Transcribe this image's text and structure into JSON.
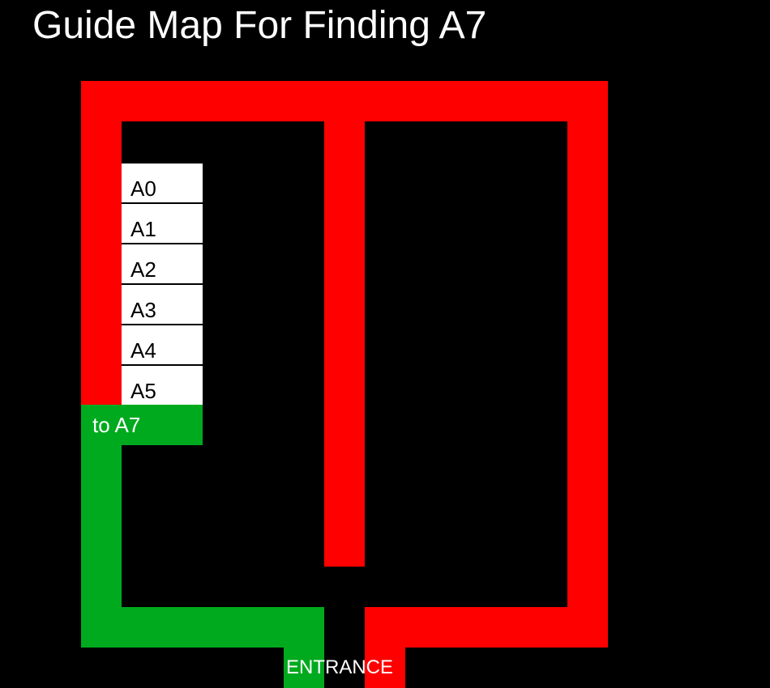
{
  "title": "Guide Map For Finding A7",
  "slots": [
    {
      "label": "A0"
    },
    {
      "label": "A1"
    },
    {
      "label": "A2"
    },
    {
      "label": "A3"
    },
    {
      "label": "A4"
    },
    {
      "label": "A5"
    }
  ],
  "route_label": "to A7",
  "entrance_label": "ENTRANCE",
  "colors": {
    "background": "#000000",
    "corridor": "#ff0000",
    "route": "#00aa1e",
    "slot": "#ffffff"
  }
}
